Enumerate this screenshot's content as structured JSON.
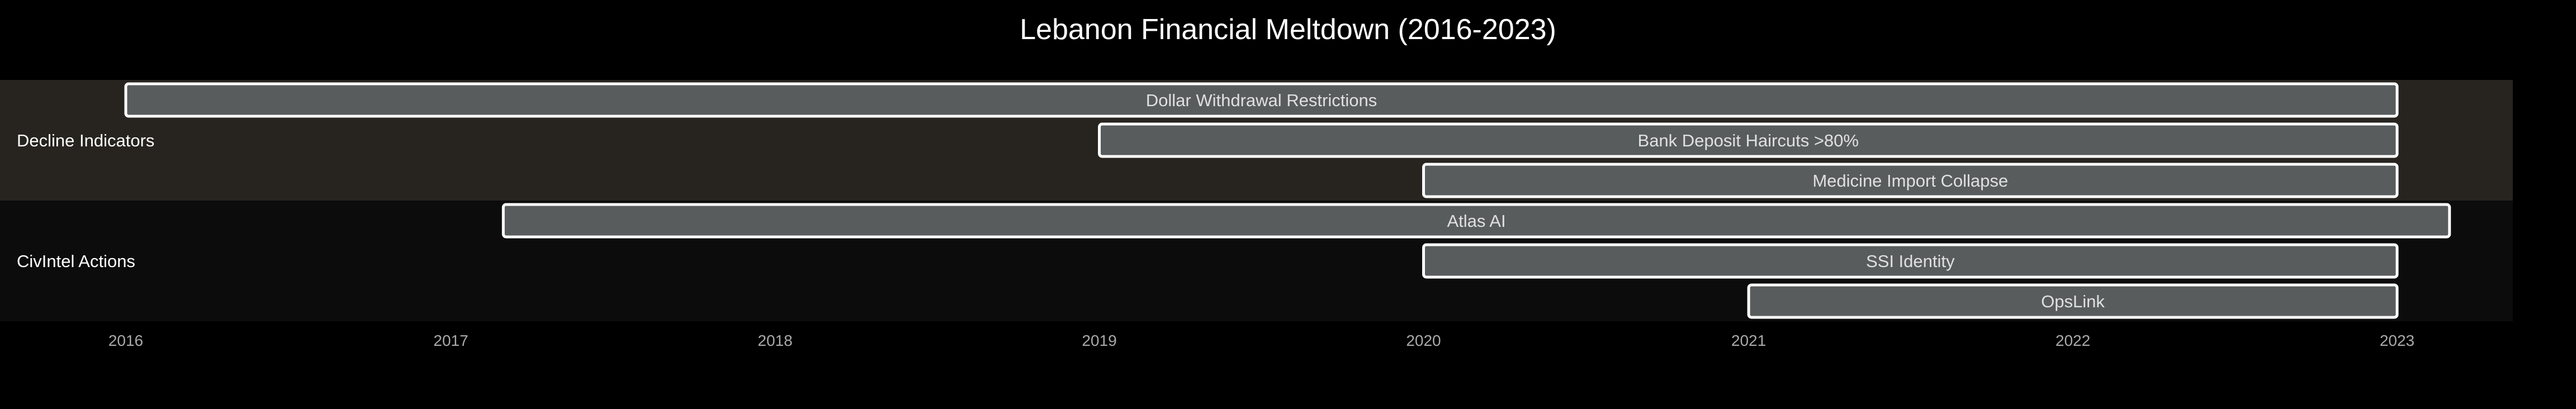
{
  "chart_data": {
    "type": "gantt",
    "title": "Lebanon Financial Meltdown (2016-2023)",
    "x_ticks": [
      "2016",
      "2017",
      "2018",
      "2019",
      "2020",
      "2021",
      "2022",
      "2023"
    ],
    "xlim": [
      "2016-01-01",
      "2023-05-01"
    ],
    "sections": [
      {
        "name": "Decline Indicators",
        "color": "#272420",
        "tasks": [
          {
            "name": "Dollar Withdrawal Restrictions",
            "start": "2016-01-01",
            "end": "2023-01-01"
          },
          {
            "name": "Bank Deposit Haircuts >80%",
            "start": "2019-01-01",
            "end": "2023-01-01"
          },
          {
            "name": "Medicine Import Collapse",
            "start": "2020-01-01",
            "end": "2023-01-01"
          }
        ]
      },
      {
        "name": "CivIntel Actions",
        "color": "#0c0c0c",
        "tasks": [
          {
            "name": "Atlas AI",
            "start": "2017-03-01",
            "end": "2023-03-01"
          },
          {
            "name": "SSI Identity",
            "start": "2020-01-01",
            "end": "2023-01-01"
          },
          {
            "name": "OpsLink",
            "start": "2021-01-01",
            "end": "2023-01-01"
          }
        ]
      }
    ],
    "bar_fill": "#595c5c",
    "bar_stroke": "#ffffff",
    "background": "#000000"
  }
}
